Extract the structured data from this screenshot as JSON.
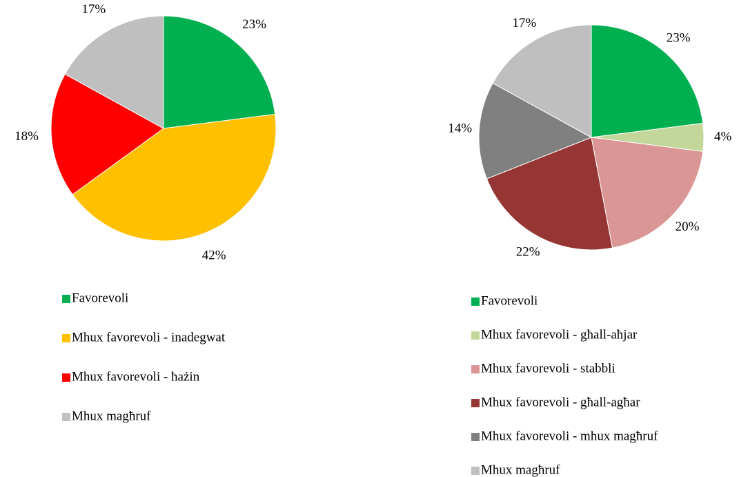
{
  "chart_data": [
    {
      "type": "pie",
      "categories": [
        "Favorevoli",
        "Mhux favorevoli - inadegwat",
        "Mhux favorevoli - ħażin",
        "Mhux magħruf"
      ],
      "values": [
        23,
        42,
        18,
        17
      ],
      "value_labels": [
        "23%",
        "42%",
        "18%",
        "17%"
      ],
      "colors": [
        "#00b050",
        "#ffc000",
        "#ff0000",
        "#bfbfbf"
      ]
    },
    {
      "type": "pie",
      "categories": [
        "Favorevoli",
        "Mhux favorevoli - għall-aħjar",
        "Mhux favorevoli - stabbli",
        "Mhux favorevoli - għall-agħar",
        "Mhux favorevoli - mhux magħruf",
        "Mhux magħruf"
      ],
      "values": [
        23,
        4,
        20,
        22,
        14,
        17
      ],
      "value_labels": [
        "23%",
        "4%",
        "20%",
        "22%",
        "14%",
        "17%"
      ],
      "colors": [
        "#00b050",
        "#c4d79b",
        "#da9694",
        "#963634",
        "#808080",
        "#bfbfbf"
      ]
    }
  ]
}
